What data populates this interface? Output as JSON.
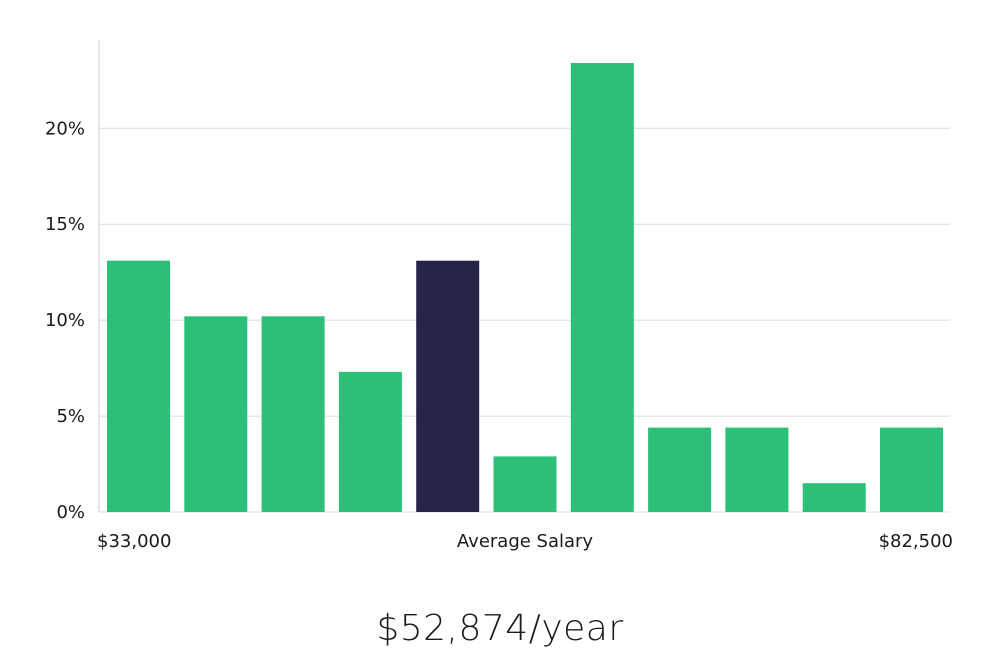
{
  "chart_data": {
    "type": "bar",
    "bins": 11,
    "values": [
      13.1,
      10.2,
      10.2,
      7.3,
      13.1,
      2.9,
      23.4,
      4.4,
      4.4,
      1.5,
      4.4
    ],
    "highlight_index": 4,
    "y_ticks": [
      "0%",
      "5%",
      "10%",
      "15%",
      "20%"
    ],
    "y_tick_values": [
      0,
      5,
      10,
      15,
      20
    ],
    "ylim": [
      0,
      24.6
    ],
    "x_min_label": "$33,000",
    "x_center_label": "Average Salary",
    "x_max_label": "$82,500",
    "grid": true,
    "colors": {
      "bar": "#2bbf77",
      "highlight": "#27244a",
      "grid": "#dcdcdc",
      "axis": "#cfcfcf"
    }
  },
  "salary_summary": "$52,874/year"
}
